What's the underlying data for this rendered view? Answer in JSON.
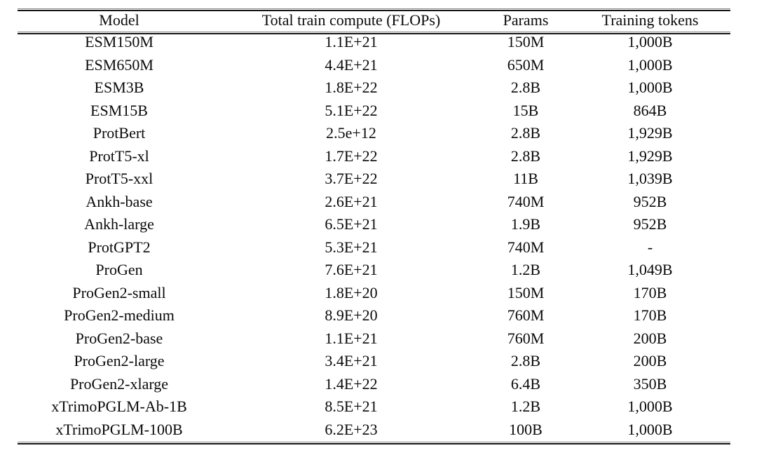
{
  "page": {
    "background_color": "#ffffff",
    "text_color": "#0a0a0a",
    "rule_color": "#151515"
  },
  "table": {
    "columns": [
      "Model",
      "Total train compute (FLOPs)",
      "Params",
      "Training tokens"
    ],
    "rows": [
      [
        "ESM150M",
        "1.1E+21",
        "150M",
        "1,000B"
      ],
      [
        "ESM650M",
        "4.4E+21",
        "650M",
        "1,000B"
      ],
      [
        "ESM3B",
        "1.8E+22",
        "2.8B",
        "1,000B"
      ],
      [
        "ESM15B",
        "5.1E+22",
        "15B",
        "864B"
      ],
      [
        "ProtBert",
        "2.5e+12",
        "2.8B",
        "1,929B"
      ],
      [
        "ProtT5-xl",
        "1.7E+22",
        "2.8B",
        "1,929B"
      ],
      [
        "ProtT5-xxl",
        "3.7E+22",
        "11B",
        "1,039B"
      ],
      [
        "Ankh-base",
        "2.6E+21",
        "740M",
        "952B"
      ],
      [
        "Ankh-large",
        "6.5E+21",
        "1.9B",
        "952B"
      ],
      [
        "ProtGPT2",
        "5.3E+21",
        "740M",
        "-"
      ],
      [
        "ProGen",
        "7.6E+21",
        "1.2B",
        "1,049B"
      ],
      [
        "ProGen2-small",
        "1.8E+20",
        "150M",
        "170B"
      ],
      [
        "ProGen2-medium",
        "8.9E+20",
        "760M",
        "170B"
      ],
      [
        "ProGen2-base",
        "1.1E+21",
        "760M",
        "200B"
      ],
      [
        "ProGen2-large",
        "3.4E+21",
        "2.8B",
        "200B"
      ],
      [
        "ProGen2-xlarge",
        "1.4E+22",
        "6.4B",
        "350B"
      ],
      [
        "xTrimoPGLM-Ab-1B",
        "8.5E+21",
        "1.2B",
        "1,000B"
      ],
      [
        "xTrimoPGLM-100B",
        "6.2E+23",
        "100B",
        "1,000B"
      ]
    ]
  }
}
